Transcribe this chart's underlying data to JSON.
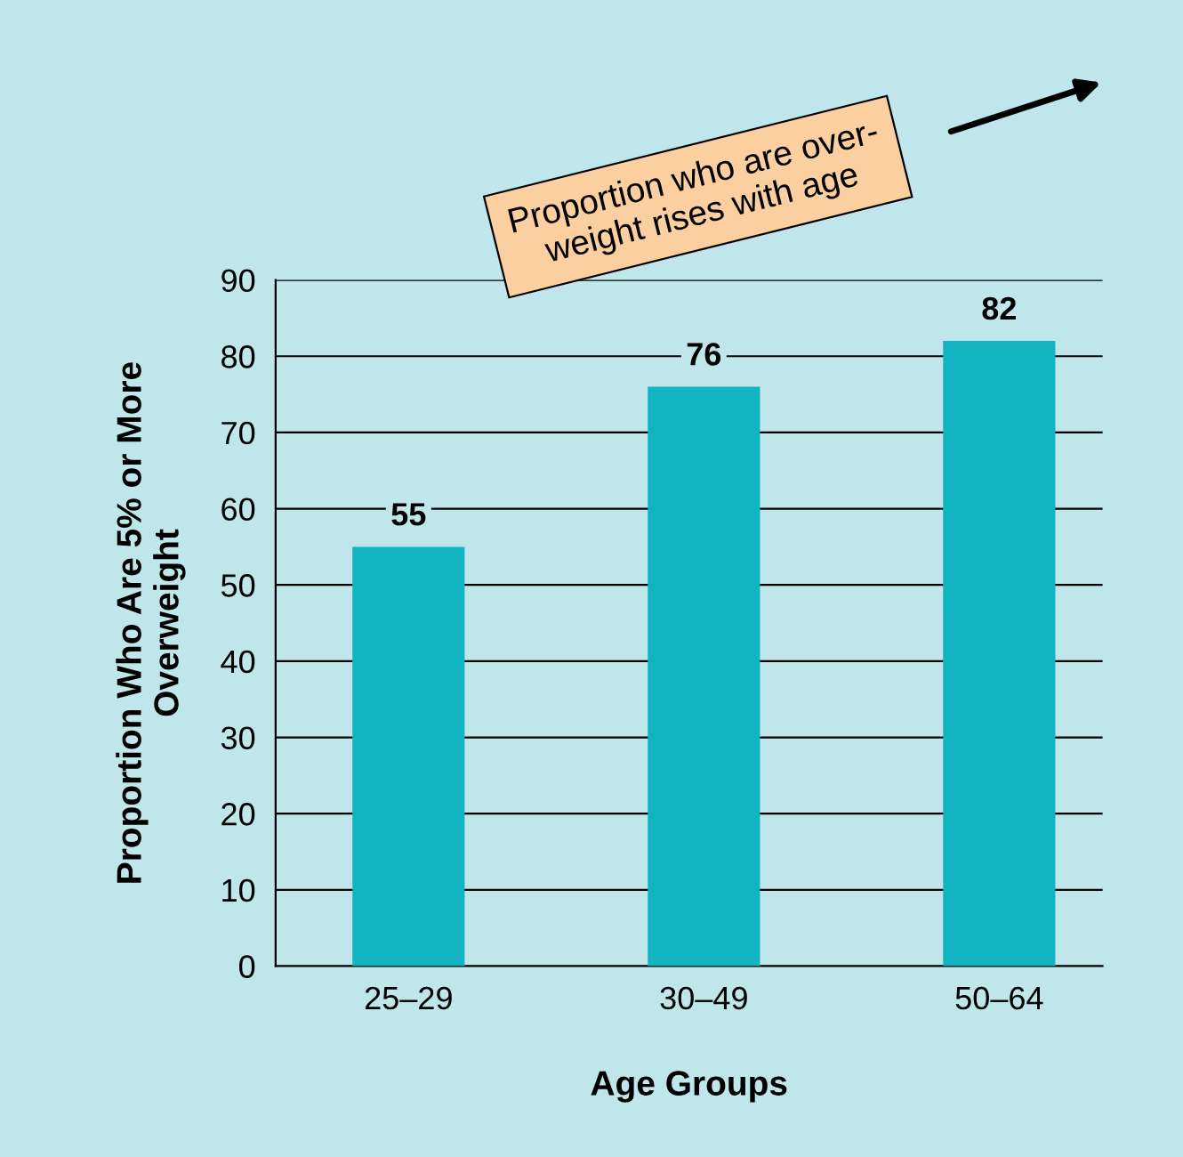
{
  "chart_data": {
    "type": "bar",
    "categories": [
      "25–29",
      "30–49",
      "50–64"
    ],
    "values": [
      55,
      76,
      82
    ],
    "color": "#12b4c2",
    "xlabel": "Age Groups",
    "ylabel": "Proportion Who Are 5% or More\nOverweight",
    "ylim": [
      0,
      90
    ],
    "yticks": [
      0,
      10,
      20,
      30,
      40,
      50,
      60,
      70,
      80,
      90
    ],
    "grid": "y",
    "data_labels": true,
    "annotations": [
      "Proportion who are over-\nweight rises with age"
    ]
  }
}
